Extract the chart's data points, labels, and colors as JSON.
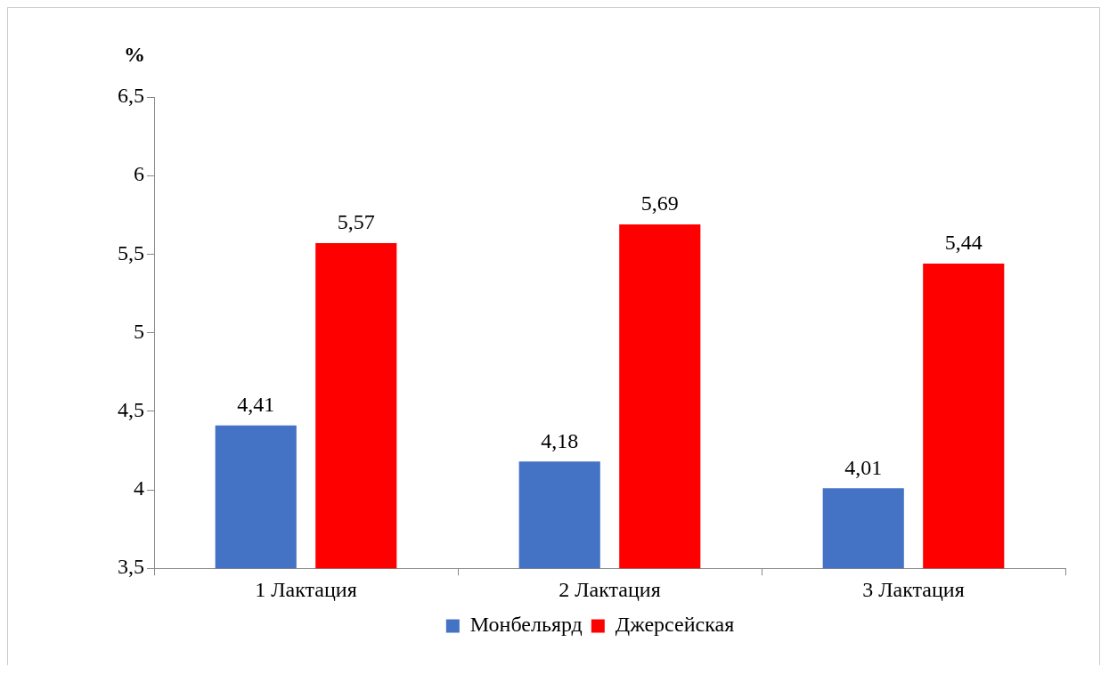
{
  "chart_data": {
    "type": "bar",
    "ylabel": "%",
    "categories": [
      "1 Лактация",
      "2 Лактация",
      "3 Лактация"
    ],
    "series": [
      {
        "name": "Монбельярд",
        "color": "#4472c4",
        "values": [
          4.41,
          4.18,
          4.01
        ],
        "value_labels": [
          "4,41",
          "4,18",
          "4,01"
        ]
      },
      {
        "name": "Джерсейская",
        "color": "#ff0000",
        "values": [
          5.57,
          5.69,
          5.44
        ],
        "value_labels": [
          "5,57",
          "5,69",
          "5,44"
        ]
      }
    ],
    "ylim": [
      3.5,
      6.5
    ],
    "yticks": [
      {
        "value": 3.5,
        "label": "3,5"
      },
      {
        "value": 4,
        "label": "4"
      },
      {
        "value": 4.5,
        "label": "4,5"
      },
      {
        "value": 5,
        "label": "5"
      },
      {
        "value": 5.5,
        "label": "5,5"
      },
      {
        "value": 6,
        "label": "6"
      },
      {
        "value": 6.5,
        "label": "6,5"
      }
    ],
    "grid": false,
    "legend": "bottom"
  }
}
